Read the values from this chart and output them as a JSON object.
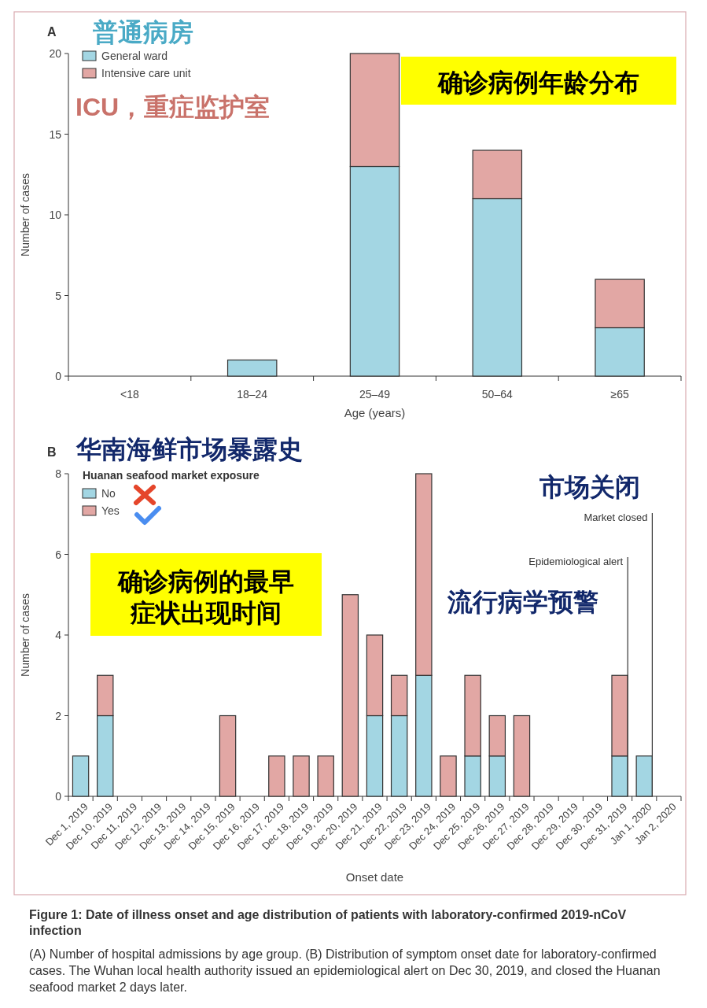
{
  "chart_data": [
    {
      "type": "bar",
      "title": "A",
      "xlabel": "Age (years)",
      "ylabel": "Number of cases",
      "stacked": true,
      "legend": "top left",
      "categories": [
        "<18",
        "18–24",
        "25–49",
        "50–64",
        "≥65"
      ],
      "series": [
        {
          "name": "General ward",
          "color": "#a3d6e3",
          "values": [
            0,
            1,
            13,
            11,
            3
          ]
        },
        {
          "name": "Intensive care unit",
          "color": "#e2a7a4",
          "values": [
            0,
            0,
            7,
            3,
            3
          ]
        }
      ],
      "ylim": [
        0,
        20
      ],
      "yticks": [
        0,
        5,
        10,
        15,
        20
      ],
      "annotations": [
        "普通病房",
        "ICU，重症监护室",
        "确诊病例年龄分布"
      ]
    },
    {
      "type": "bar",
      "title": "B",
      "xlabel": "Onset date",
      "ylabel": "Number of cases",
      "stacked": true,
      "legend": "top left",
      "legend_title": "Huanan seafood market exposure",
      "categories": [
        "Dec 1, 2019",
        "Dec 10, 2019",
        "Dec 11, 2019",
        "Dec 12, 2019",
        "Dec 13, 2019",
        "Dec 14, 2019",
        "Dec 15, 2019",
        "Dec 16, 2019",
        "Dec 17, 2019",
        "Dec 18, 2019",
        "Dec 19, 2019",
        "Dec 20, 2019",
        "Dec 21, 2019",
        "Dec 22, 2019",
        "Dec 23, 2019",
        "Dec 24, 2019",
        "Dec 25, 2019",
        "Dec 26, 2019",
        "Dec 27, 2019",
        "Dec 28, 2019",
        "Dec 29, 2019",
        "Dec 30, 2019",
        "Dec 31, 2019",
        "Jan 1, 2020",
        "Jan 2, 2020"
      ],
      "series": [
        {
          "name": "No",
          "color": "#a3d6e3",
          "values": [
            1,
            2,
            0,
            0,
            0,
            0,
            0,
            0,
            0,
            0,
            0,
            0,
            2,
            2,
            3,
            0,
            1,
            1,
            0,
            0,
            0,
            0,
            1,
            1,
            0
          ]
        },
        {
          "name": "Yes",
          "color": "#e2a7a4",
          "values": [
            0,
            1,
            0,
            0,
            0,
            0,
            2,
            0,
            1,
            1,
            1,
            5,
            2,
            1,
            5,
            1,
            2,
            1,
            2,
            0,
            0,
            0,
            2,
            0,
            0
          ]
        }
      ],
      "ylim": [
        0,
        8
      ],
      "yticks": [
        0,
        2,
        4,
        6,
        8
      ],
      "ref_lines": [
        {
          "axis": "x",
          "value": "Dec 31, 2019",
          "label": "Epidemiological alert"
        },
        {
          "axis": "x",
          "value": "Jan 1, 2020",
          "label": "Market closed"
        }
      ],
      "annotations": [
        "华南海鲜市场暴露史",
        "市场关闭",
        "确诊病例的最早症状出现时间",
        "流行病学预警",
        "Figure 1: Date of illness onset and age distribution of patients with laboratory-confirmed 2019-nCoV infection",
        "(A) Number of hospital admissions by age group. (B) Distribution of symptom onset date for laboratory-confirmed cases. The Wuhan local health authority issued an epidemiological alert on Dec 30, 2019, and closed the Huanan seafood market 2 days later."
      ]
    }
  ]
}
